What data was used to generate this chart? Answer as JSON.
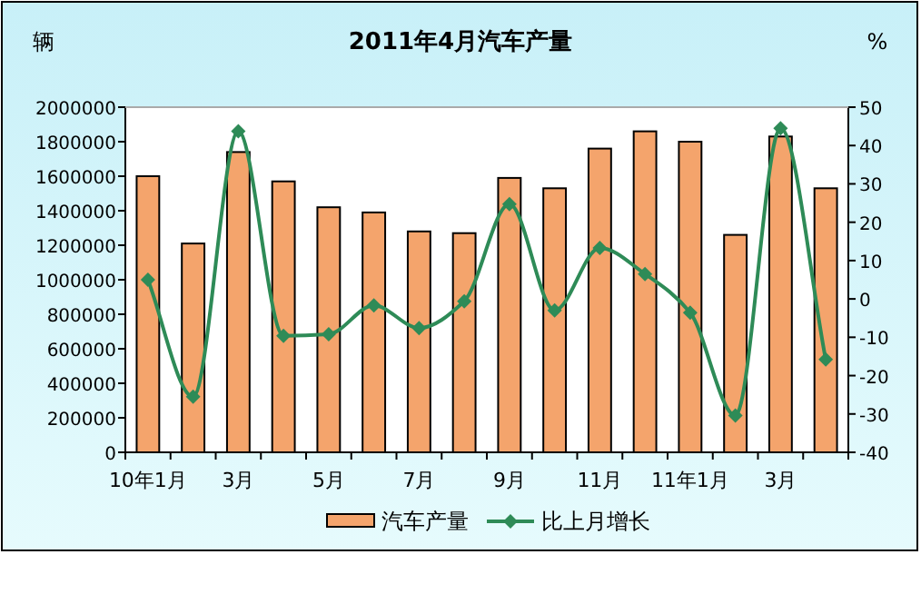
{
  "chart_data": {
    "type": "bar",
    "title": "2011年4月汽车产量",
    "ylabel": "辆",
    "y2label": "%",
    "categories": [
      "10年1月",
      null,
      "3月",
      null,
      "5月",
      null,
      "7月",
      null,
      "9月",
      null,
      "11月",
      null,
      "11年1月",
      null,
      "3月",
      null
    ],
    "series": [
      {
        "name": "汽车产量",
        "color": "#f4a46c",
        "values": [
          1600000,
          1210000,
          1740000,
          1570000,
          1420000,
          1390000,
          1280000,
          1270000,
          1590000,
          1530000,
          1760000,
          1860000,
          1800000,
          1260000,
          1830000,
          1530000
        ]
      },
      {
        "name": "比上月增长",
        "type": "line",
        "axis": "y2",
        "color": "#2e8b57",
        "marker": "diamond",
        "values": [
          5,
          -25.5,
          43.7,
          -9.6,
          -9.2,
          -1.7,
          -7.6,
          -0.6,
          24.7,
          -3,
          13.3,
          6.5,
          -3.6,
          -30.4,
          44.5,
          -15.8
        ]
      }
    ],
    "ylim": [
      0,
      2000000
    ],
    "yticks": [
      0,
      200000,
      400000,
      600000,
      800000,
      1000000,
      1200000,
      1400000,
      1600000,
      1800000,
      2000000
    ],
    "y2lim": [
      -40,
      50
    ],
    "y2ticks": [
      -40,
      -30,
      -20,
      -10,
      0,
      10,
      20,
      30,
      40,
      50
    ],
    "grid": false,
    "legend": "bottom"
  }
}
